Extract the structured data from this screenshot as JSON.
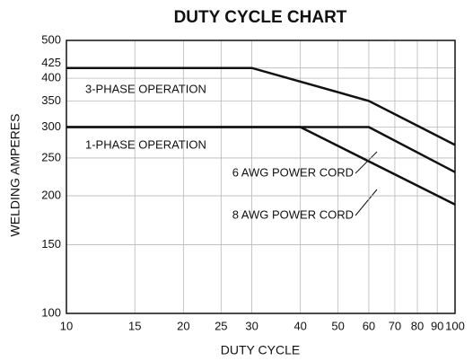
{
  "chart_data": {
    "type": "line",
    "title": "DUTY CYCLE CHART",
    "xlabel": "DUTY CYCLE",
    "ylabel": "WELDING AMPERES",
    "xscale": "log",
    "yscale": "log",
    "grid": true,
    "xlim": [
      10,
      100
    ],
    "ylim": [
      100,
      500
    ],
    "xticks": [
      10,
      15,
      20,
      25,
      30,
      40,
      50,
      60,
      70,
      80,
      90,
      100
    ],
    "yticks": [
      100,
      150,
      200,
      250,
      300,
      350,
      400,
      425,
      500
    ],
    "series": [
      {
        "name": "3-PHASE OPERATION",
        "color": "#111111",
        "x": [
          10,
          30,
          60,
          100
        ],
        "values": [
          425,
          425,
          350,
          270
        ]
      },
      {
        "name": "6 AWG POWER CORD",
        "color": "#111111",
        "x": [
          10,
          60,
          100
        ],
        "values": [
          300,
          300,
          230
        ]
      },
      {
        "name": "8 AWG POWER CORD",
        "color": "#111111",
        "x": [
          10,
          40,
          100
        ],
        "values": [
          300,
          300,
          190
        ]
      }
    ],
    "annotations": [
      "1-PHASE OPERATION"
    ]
  }
}
